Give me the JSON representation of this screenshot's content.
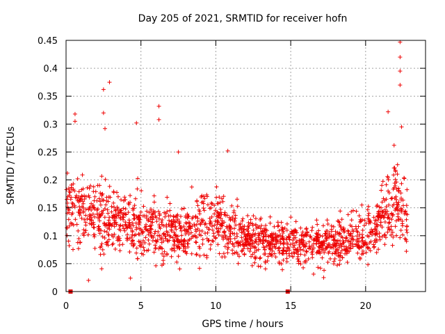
{
  "chart_data": {
    "type": "scatter",
    "title": "Day 205 of 2021, SRMTID for receiver hofn",
    "xlabel": "GPS time / hours",
    "ylabel": "SRMTID / TECUs",
    "xlim": [
      0,
      24
    ],
    "ylim": [
      0,
      0.45
    ],
    "xticks": [
      0,
      5,
      10,
      15,
      20
    ],
    "xtick_labels": [
      "0",
      "5",
      "10",
      "15",
      "20"
    ],
    "yticks": [
      0,
      0.05,
      0.1,
      0.15,
      0.2,
      0.25,
      0.3,
      0.35,
      0.4,
      0.45
    ],
    "ytick_labels": [
      "0",
      "0.05",
      "0.1",
      "0.15",
      "0.2",
      "0.25",
      "0.3",
      "0.35",
      "0.4",
      "0.45"
    ],
    "grid": true,
    "marker_color": "#ee0000",
    "baseline_markers_x": [
      0.3,
      14.8
    ],
    "profile": {
      "hours": [
        0,
        1,
        2,
        3,
        4,
        5,
        6,
        7,
        8,
        9,
        10,
        11,
        12,
        13,
        14,
        15,
        16,
        17,
        18,
        19,
        20,
        21,
        22,
        22.8
      ],
      "mean_values": [
        0.14,
        0.15,
        0.14,
        0.13,
        0.12,
        0.115,
        0.11,
        0.105,
        0.1,
        0.12,
        0.125,
        0.1,
        0.095,
        0.09,
        0.085,
        0.085,
        0.085,
        0.085,
        0.09,
        0.095,
        0.095,
        0.12,
        0.17,
        0.13
      ]
    },
    "highlighted_points": [
      {
        "x": 22.3,
        "y": 0.447
      },
      {
        "x": 22.3,
        "y": 0.42
      },
      {
        "x": 22.3,
        "y": 0.395
      },
      {
        "x": 22.3,
        "y": 0.37
      },
      {
        "x": 2.9,
        "y": 0.375
      },
      {
        "x": 2.5,
        "y": 0.362
      },
      {
        "x": 6.2,
        "y": 0.332
      },
      {
        "x": 21.5,
        "y": 0.322
      },
      {
        "x": 0.6,
        "y": 0.318
      },
      {
        "x": 2.5,
        "y": 0.32
      },
      {
        "x": 0.6,
        "y": 0.305
      },
      {
        "x": 6.2,
        "y": 0.308
      },
      {
        "x": 4.7,
        "y": 0.302
      },
      {
        "x": 22.4,
        "y": 0.295
      },
      {
        "x": 2.6,
        "y": 0.292
      },
      {
        "x": 21.9,
        "y": 0.262
      },
      {
        "x": 10.8,
        "y": 0.252
      },
      {
        "x": 7.5,
        "y": 0.25
      },
      {
        "x": 1.5,
        "y": 0.02
      },
      {
        "x": 4.3,
        "y": 0.024
      },
      {
        "x": 17.2,
        "y": 0.025
      }
    ]
  }
}
